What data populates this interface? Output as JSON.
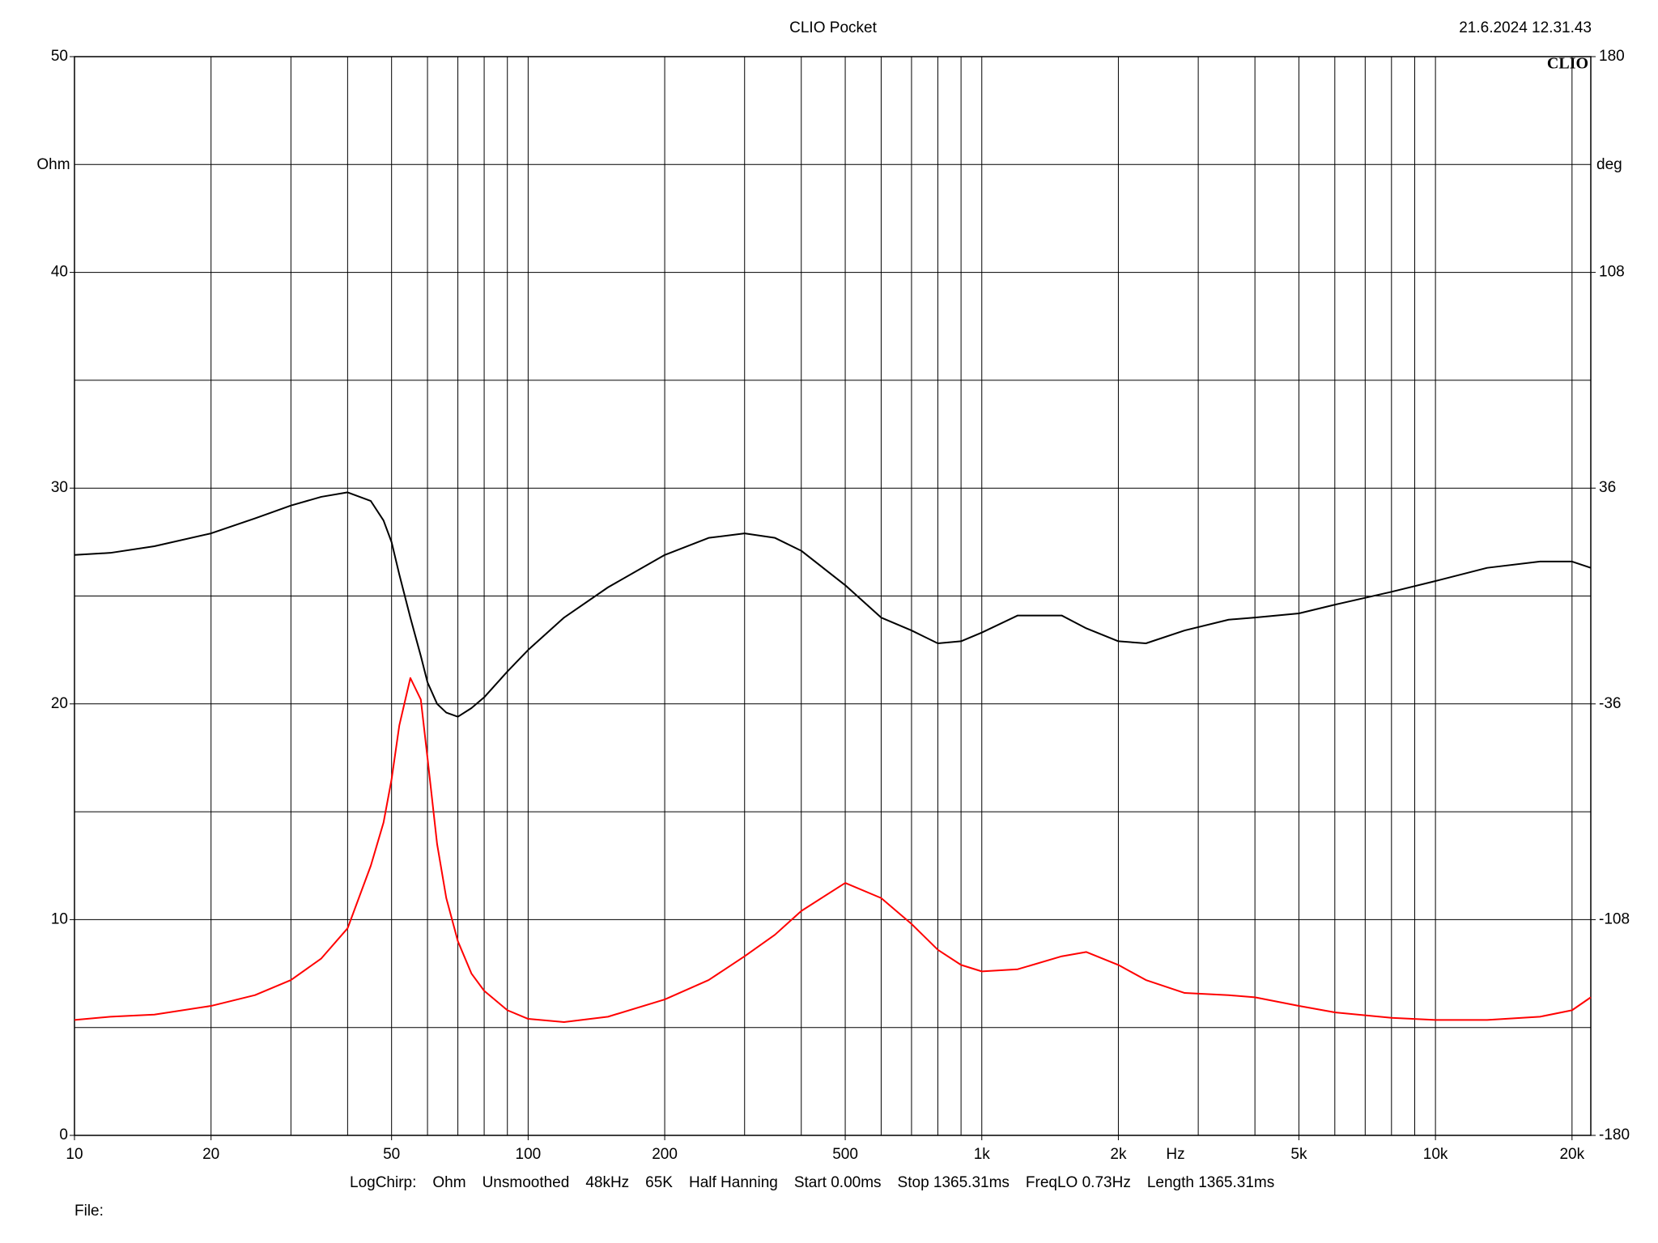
{
  "chart_data": {
    "type": "line",
    "title": "CLIO Pocket",
    "timestamp": "21.6.2024 12.31.43",
    "logo": "CLIO",
    "ylabel": "Ohm",
    "y2label": "deg",
    "xlabel": "Hz",
    "footer": [
      "LogChirp:",
      "Ohm",
      "Unsmoothed",
      "48kHz",
      "65K",
      "Half Hanning",
      "Start 0.00ms",
      "Stop 1365.31ms",
      "FreqLO 0.73Hz",
      "Length 1365.31ms"
    ],
    "file_label": "File:",
    "xscale": "log",
    "xlim": [
      10,
      22000
    ],
    "xticks": [
      10,
      20,
      50,
      100,
      200,
      500,
      {
        "value": 1000,
        "label": "1k"
      },
      {
        "value": 2000,
        "label": "2k"
      },
      {
        "value": 5000,
        "label": "5k"
      },
      {
        "value": 10000,
        "label": "10k"
      },
      {
        "value": 20000,
        "label": "20k"
      }
    ],
    "xgrid": [
      20,
      30,
      40,
      50,
      60,
      70,
      80,
      90,
      100,
      200,
      300,
      400,
      500,
      600,
      700,
      800,
      900,
      1000,
      2000,
      3000,
      4000,
      5000,
      6000,
      7000,
      8000,
      9000,
      10000,
      20000
    ],
    "ylim": [
      0,
      50
    ],
    "yticks": [
      0,
      10,
      20,
      30,
      40,
      50
    ],
    "ygrid": [
      5,
      10,
      15,
      20,
      25,
      30,
      35,
      40,
      45
    ],
    "y2lim": [
      -180,
      180
    ],
    "y2ticks": [
      -180,
      -108,
      -36,
      36,
      108,
      180
    ],
    "grid": true,
    "x": [
      10,
      12,
      15,
      20,
      25,
      30,
      35,
      40,
      45,
      48,
      50,
      52,
      55,
      58,
      60,
      63,
      66,
      70,
      75,
      80,
      90,
      100,
      120,
      150,
      200,
      250,
      300,
      350,
      400,
      500,
      600,
      700,
      800,
      900,
      1000,
      1200,
      1500,
      1700,
      2000,
      2300,
      2800,
      3500,
      4000,
      5000,
      6000,
      8000,
      10000,
      13000,
      17000,
      20000,
      22000
    ],
    "series": [
      {
        "color": "#000000",
        "axis": "y2",
        "values": [
          13.7,
          14.4,
          16.6,
          20.9,
          25.9,
          30.2,
          33.1,
          34.6,
          31.7,
          25.2,
          18,
          7.2,
          -7.2,
          -20,
          -28.8,
          -36,
          -38.9,
          -40.3,
          -37.4,
          -33.8,
          -25.2,
          -18,
          -7.2,
          2.9,
          13.7,
          19.4,
          20.9,
          19.4,
          15.1,
          3.6,
          -7.2,
          -11.5,
          -15.8,
          -15.1,
          -12.2,
          -6.5,
          -6.5,
          -10.8,
          -15.1,
          -15.8,
          -11.5,
          -7.9,
          -7.2,
          -5.8,
          -2.9,
          1.4,
          5.0,
          9.4,
          11.5,
          11.5,
          9.4
        ]
      },
      {
        "color": "#ff0000",
        "values": [
          5.35,
          5.5,
          5.6,
          6.0,
          6.5,
          7.2,
          8.2,
          9.6,
          12.5,
          14.5,
          16.5,
          19,
          21.2,
          20.2,
          17.5,
          13.5,
          11,
          9,
          7.5,
          6.7,
          5.8,
          5.4,
          5.25,
          5.5,
          6.3,
          7.2,
          8.3,
          9.3,
          10.4,
          11.7,
          11.0,
          9.8,
          8.6,
          7.9,
          7.6,
          7.7,
          8.3,
          8.5,
          7.9,
          7.2,
          6.6,
          6.5,
          6.4,
          6.0,
          5.7,
          5.45,
          5.35,
          5.35,
          5.5,
          5.8,
          6.4
        ]
      }
    ]
  }
}
